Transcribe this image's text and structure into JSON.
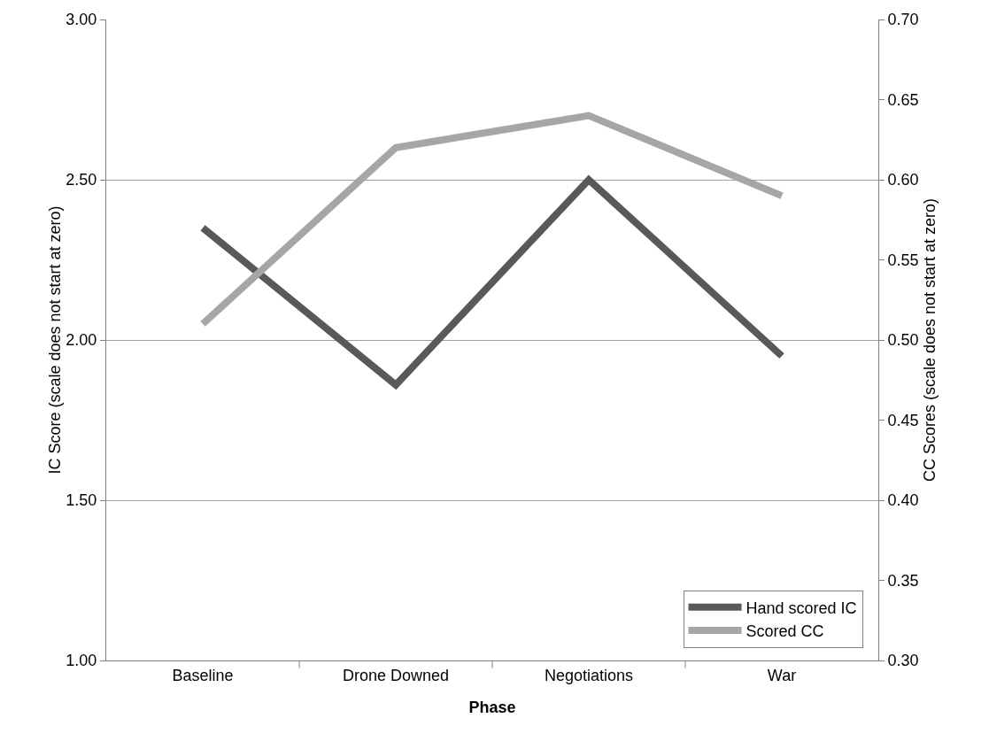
{
  "chart_data": {
    "type": "line",
    "xlabel": "Phase",
    "ylabel": "IC Score (scale does not start at zero)",
    "y2label": "CC Scores (scale does not start at zero)",
    "categories": [
      "Baseline",
      "Drone Downed",
      "Negotiations",
      "War"
    ],
    "series": [
      {
        "name": "Hand scored IC",
        "color": "#595959",
        "values": [
          2.35,
          1.86,
          2.5,
          1.95
        ]
      },
      {
        "name": "Scored CC",
        "color": "#a6a6a6",
        "axis": "y2",
        "values": [
          0.51,
          0.62,
          0.64,
          0.59
        ]
      }
    ],
    "ylim": [
      1,
      3
    ],
    "yticks": [
      {
        "value": 1,
        "label": "1.00"
      },
      {
        "value": 1.5,
        "label": "1.50"
      },
      {
        "value": 2,
        "label": "2.00"
      },
      {
        "value": 2.5,
        "label": "2.50"
      },
      {
        "value": 3,
        "label": "3.00"
      }
    ],
    "y2lim": [
      0.3,
      0.7
    ],
    "y2ticks": [
      {
        "value": 0.3,
        "label": "0.30"
      },
      {
        "value": 0.35,
        "label": "0.35"
      },
      {
        "value": 0.4,
        "label": "0.40"
      },
      {
        "value": 0.45,
        "label": "0.45"
      },
      {
        "value": 0.5,
        "label": "0.50"
      },
      {
        "value": 0.55,
        "label": "0.55"
      },
      {
        "value": 0.6,
        "label": "0.60"
      },
      {
        "value": 0.65,
        "label": "0.65"
      },
      {
        "value": 0.7,
        "label": "0.70"
      }
    ],
    "grid": "y",
    "legend": "bottom right",
    "marker": "none",
    "line_style": "solid"
  }
}
